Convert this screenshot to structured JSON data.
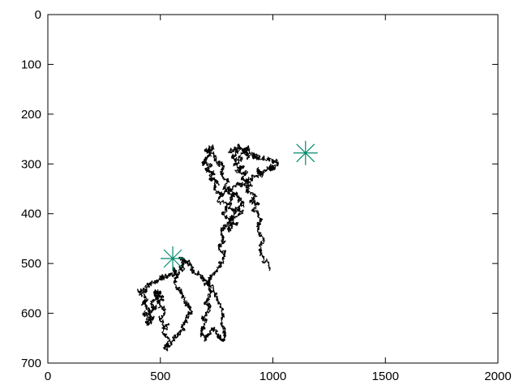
{
  "chart_data": {
    "type": "scatter",
    "title": "",
    "xlabel": "",
    "ylabel": "",
    "xlim": [
      0,
      2000
    ],
    "ylim": [
      0,
      700
    ],
    "y_axis_inverted": true,
    "grid": false,
    "legend": "none",
    "x_ticks": [
      "0",
      "500",
      "1000",
      "1500",
      "2000"
    ],
    "y_ticks": [
      "0",
      "100",
      "200",
      "300",
      "400",
      "500",
      "600",
      "700"
    ],
    "x_tick_values": [
      0,
      500,
      1000,
      1500,
      2000
    ],
    "y_tick_values": [
      0,
      100,
      200,
      300,
      400,
      500,
      600,
      700
    ],
    "series": [
      {
        "type": "line",
        "color": "#000000",
        "x": [
          985,
          960,
          940,
          955,
          930,
          945,
          915,
          935,
          900,
          925,
          880,
          900,
          860,
          885,
          840,
          870,
          830,
          860,
          820,
          845,
          810,
          850,
          880,
          860,
          900,
          875,
          940,
          910,
          960,
          1000,
          1020,
          990,
          1010,
          970,
          930,
          950,
          910,
          890,
          860,
          830,
          800,
          830,
          850,
          870,
          840,
          860,
          820,
          840,
          800,
          810,
          780,
          800,
          760,
          780,
          740,
          760,
          720,
          740,
          700,
          720,
          690,
          700,
          720,
          700,
          730,
          715,
          745,
          760,
          780,
          770,
          800,
          790,
          820,
          805,
          830,
          810,
          790,
          770,
          780,
          760,
          790,
          770,
          745,
          725,
          710,
          730,
          700,
          720,
          690,
          705,
          680,
          700,
          720,
          740,
          760,
          780,
          790,
          770,
          780,
          760,
          740,
          720,
          700,
          680,
          650,
          630,
          610,
          590,
          600,
          580,
          560,
          580,
          600,
          620,
          640,
          620,
          600,
          580,
          560,
          540,
          520,
          540,
          510,
          530,
          500,
          520,
          490,
          510,
          480,
          500,
          470,
          490,
          460,
          480,
          450,
          470,
          440,
          460,
          430,
          450,
          420,
          440,
          410,
          430,
          450,
          470,
          490,
          510,
          530,
          550,
          570,
          560
        ],
        "y": [
          510,
          490,
          470,
          450,
          430,
          410,
          395,
          380,
          375,
          365,
          355,
          340,
          330,
          320,
          315,
          305,
          300,
          290,
          285,
          275,
          270,
          268,
          270,
          275,
          272,
          280,
          285,
          282,
          290,
          292,
          300,
          305,
          310,
          312,
          315,
          322,
          330,
          335,
          340,
          345,
          350,
          360,
          370,
          380,
          390,
          400,
          410,
          420,
          430,
          415,
          400,
          385,
          370,
          360,
          350,
          340,
          330,
          320,
          315,
          305,
          300,
          290,
          280,
          270,
          265,
          275,
          285,
          295,
          305,
          320,
          335,
          350,
          365,
          380,
          395,
          410,
          425,
          440,
          455,
          470,
          485,
          500,
          515,
          530,
          545,
          560,
          575,
          590,
          605,
          620,
          635,
          650,
          640,
          630,
          645,
          655,
          640,
          620,
          600,
          580,
          560,
          545,
          535,
          525,
          515,
          505,
          495,
          490,
          505,
          520,
          535,
          550,
          565,
          580,
          595,
          610,
          625,
          640,
          655,
          665,
          670,
          655,
          640,
          625,
          610,
          595,
          580,
          570,
          560,
          555,
          560,
          570,
          580,
          590,
          600,
          610,
          620,
          615,
          600,
          590,
          580,
          570,
          560,
          555,
          545,
          540,
          535,
          530,
          525,
          520,
          515,
          510
        ]
      },
      {
        "type": "points",
        "marker": "asterisk",
        "color": "#00896b",
        "x": [
          555,
          1145
        ],
        "y": [
          490,
          278
        ]
      }
    ]
  }
}
